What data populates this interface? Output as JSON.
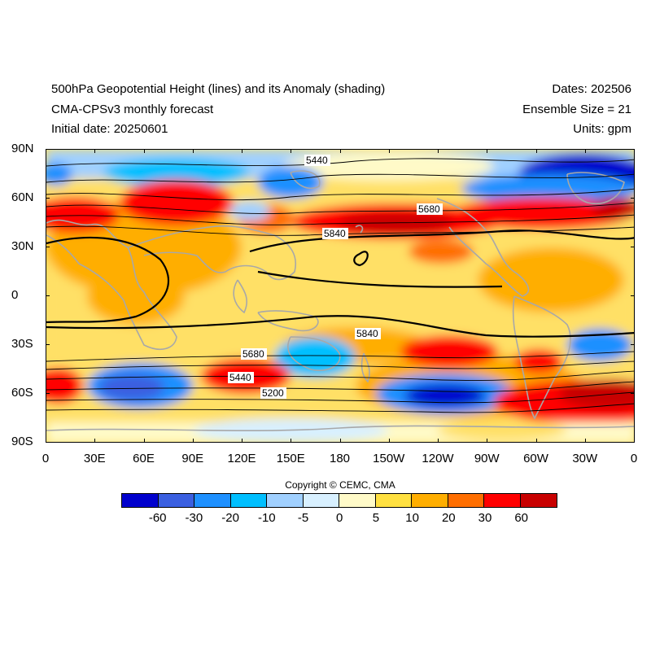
{
  "title": {
    "line1": "500hPa Geopotential Height (lines) and its Anomaly (shading)",
    "line2": "CMA-CPSv3 monthly forecast",
    "line3": "Initial date: 20250601",
    "dates": "Dates: 202506",
    "ensemble": "Ensemble Size = 21",
    "units": "Units: gpm"
  },
  "map": {
    "lat_labels": [
      "90N",
      "60N",
      "30N",
      "0",
      "30S",
      "60S",
      "90S"
    ],
    "lon_labels": [
      "0",
      "30E",
      "60E",
      "90E",
      "120E",
      "150E",
      "180",
      "150W",
      "120W",
      "90W",
      "60W",
      "30W",
      "0"
    ],
    "contour_labels": [
      "5440",
      "5680",
      "5840",
      "5840",
      "5680",
      "5440",
      "5200"
    ],
    "coastline_color": "#a8a8a8"
  },
  "colorbar": {
    "colors": [
      "#0000cd",
      "#3a5fe0",
      "#1e90ff",
      "#00bfff",
      "#a0d0ff",
      "#d8f0ff",
      "#fffac8",
      "#ffe040",
      "#ffae00",
      "#ff6e00",
      "#ff0000",
      "#c80000"
    ],
    "labels": [
      "-60",
      "-30",
      "-20",
      "-10",
      "-5",
      "0",
      "5",
      "10",
      "20",
      "30",
      "60"
    ]
  },
  "copyright": "Copyright © CEMC, CMA"
}
